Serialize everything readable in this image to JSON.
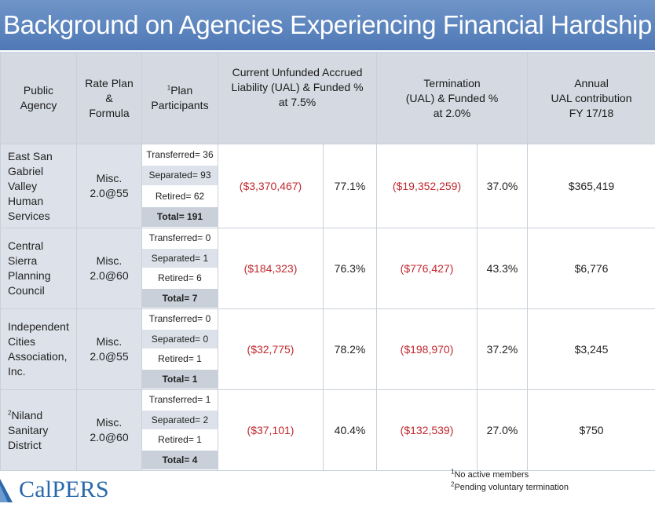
{
  "title": "Background on Agencies Experiencing Financial Hardship",
  "headers": {
    "agency": [
      "Public",
      "Agency"
    ],
    "rate": [
      "Rate Plan",
      "&",
      "Formula"
    ],
    "participants_sup": "1",
    "participants": [
      "Plan",
      "Participants"
    ],
    "ual": [
      "Current Unfunded Accrued",
      "Liability (UAL) & Funded %",
      "at 7.5%"
    ],
    "termination": [
      "Termination",
      "(UAL) & Funded %",
      "at 2.0%"
    ],
    "annual": [
      "Annual",
      "UAL contribution",
      "FY 17/18"
    ]
  },
  "rows": [
    {
      "agency_sup": "",
      "agency": [
        "East San",
        "Gabriel",
        "Valley",
        "Human",
        "Services"
      ],
      "rate": [
        "Misc.",
        "2.0@55"
      ],
      "participants": [
        "Transferred= 36",
        "Separated= 93",
        "Retired= 62",
        "Total= 191"
      ],
      "ual": "($3,370,467)",
      "funded": "77.1%",
      "term_ual": "($19,352,259)",
      "term_funded": "37.0%",
      "annual": "$365,419"
    },
    {
      "agency_sup": "",
      "agency": [
        "Central",
        "Sierra",
        "Planning",
        "Council"
      ],
      "rate": [
        "Misc.",
        "2.0@60"
      ],
      "participants": [
        "Transferred= 0",
        "Separated= 1",
        "Retired= 6",
        "Total= 7"
      ],
      "ual": "($184,323)",
      "funded": "76.3%",
      "term_ual": "($776,427)",
      "term_funded": "43.3%",
      "annual": "$6,776"
    },
    {
      "agency_sup": "",
      "agency": [
        "Independent",
        "Cities",
        "Association,",
        "Inc."
      ],
      "rate": [
        "Misc.",
        "2.0@55"
      ],
      "participants": [
        "Transferred= 0",
        "Separated= 0",
        "Retired= 1",
        "Total= 1"
      ],
      "ual": "($32,775)",
      "funded": "78.2%",
      "term_ual": "($198,970)",
      "term_funded": "37.2%",
      "annual": "$3,245"
    },
    {
      "agency_sup": "2",
      "agency": [
        "Niland",
        "Sanitary",
        "District"
      ],
      "rate": [
        "Misc.",
        "2.0@60"
      ],
      "participants": [
        "Transferred= 1",
        "Separated= 2",
        "Retired= 1",
        "Total= 4"
      ],
      "ual": "($37,101)",
      "funded": "40.4%",
      "term_ual": "($132,539)",
      "term_funded": "27.0%",
      "annual": "$750"
    }
  ],
  "notes": [
    {
      "sup": "1",
      "text": "No active members"
    },
    {
      "sup": "2",
      "text": "Pending voluntary termination"
    }
  ],
  "logo": "CalPERS",
  "colors": {
    "title_bar": "#5a82bd",
    "header_fill": "#d5dae2",
    "row_fill": "#dde2ea",
    "negative": "#c0282e",
    "logo": "#2a69ab"
  }
}
